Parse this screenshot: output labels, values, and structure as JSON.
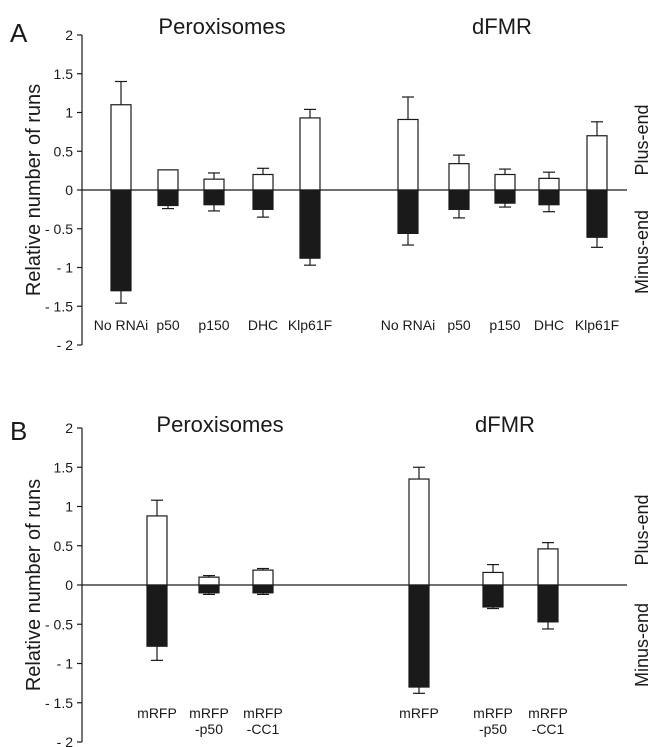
{
  "chart_data": [
    {
      "type": "bar",
      "panel_label": "A",
      "ylabel": "Relative number of runs",
      "ylim": [
        -2,
        2
      ],
      "yticks": [
        2,
        1.5,
        1,
        0.5,
        0,
        -0.5,
        -1,
        -1.5,
        -2
      ],
      "ytick_labels": [
        "2",
        "1.5",
        "1",
        "0.5",
        "0",
        "- 0.5",
        "- 1",
        "- 1.5",
        "- 2"
      ],
      "side_labels": {
        "positive": "Plus-end",
        "negative": "Minus-end"
      },
      "groups": [
        {
          "title": "Peroxisomes",
          "categories": [
            "No RNAi",
            "p50",
            "p150",
            "DHC",
            "Klp61F"
          ],
          "series": [
            {
              "values": [
                1.1,
                0.26,
                0.14,
                0.2,
                0.93
              ],
              "errors": [
                0.3,
                0,
                0.08,
                0.08,
                0.11
              ],
              "color": "#ffffff"
            },
            {
              "values": [
                -1.3,
                -0.2,
                -0.19,
                -0.25,
                -0.88
              ],
              "errors": [
                0.16,
                0.04,
                0.08,
                0.1,
                0.09
              ],
              "color": "#1a1a1a"
            }
          ]
        },
        {
          "title": "dFMR",
          "categories": [
            "No RNAi",
            "p50",
            "p150",
            "DHC",
            "Klp61F"
          ],
          "series": [
            {
              "values": [
                0.91,
                0.34,
                0.2,
                0.15,
                0.7
              ],
              "errors": [
                0.29,
                0.11,
                0.07,
                0.08,
                0.18
              ],
              "color": "#ffffff"
            },
            {
              "values": [
                -0.56,
                -0.25,
                -0.17,
                -0.19,
                -0.61
              ],
              "errors": [
                0.15,
                0.11,
                0.05,
                0.09,
                0.13
              ],
              "color": "#1a1a1a"
            }
          ]
        }
      ]
    },
    {
      "type": "bar",
      "panel_label": "B",
      "ylabel": "Relative number of runs",
      "ylim": [
        -2,
        2
      ],
      "yticks": [
        2,
        1.5,
        1,
        0.5,
        0,
        -0.5,
        -1,
        -1.5,
        -2
      ],
      "ytick_labels": [
        "2",
        "1.5",
        "1",
        "0.5",
        "0",
        "- 0.5",
        "- 1",
        "- 1.5",
        "- 2"
      ],
      "side_labels": {
        "positive": "Plus-end",
        "negative": "Minus-end"
      },
      "groups": [
        {
          "title": "Peroxisomes",
          "categories": [
            [
              "mRFP"
            ],
            [
              "mRFP",
              "-p50"
            ],
            [
              "mRFP",
              "-CC1"
            ]
          ],
          "series": [
            {
              "values": [
                0.88,
                0.1,
                0.19
              ],
              "errors": [
                0.2,
                0.02,
                0.02
              ],
              "color": "#ffffff"
            },
            {
              "values": [
                -0.78,
                -0.1,
                -0.1
              ],
              "errors": [
                0.18,
                0.02,
                0.02
              ],
              "color": "#1a1a1a"
            }
          ]
        },
        {
          "title": "dFMR",
          "categories": [
            [
              "mRFP"
            ],
            [
              "mRFP",
              "-p50"
            ],
            [
              "mRFP",
              "-CC1"
            ]
          ],
          "series": [
            {
              "values": [
                1.35,
                0.16,
                0.46
              ],
              "errors": [
                0.15,
                0.1,
                0.08
              ],
              "color": "#ffffff"
            },
            {
              "values": [
                -1.3,
                -0.28,
                -0.47
              ],
              "errors": [
                0.08,
                0.02,
                0.09
              ],
              "color": "#1a1a1a"
            }
          ]
        }
      ]
    }
  ]
}
